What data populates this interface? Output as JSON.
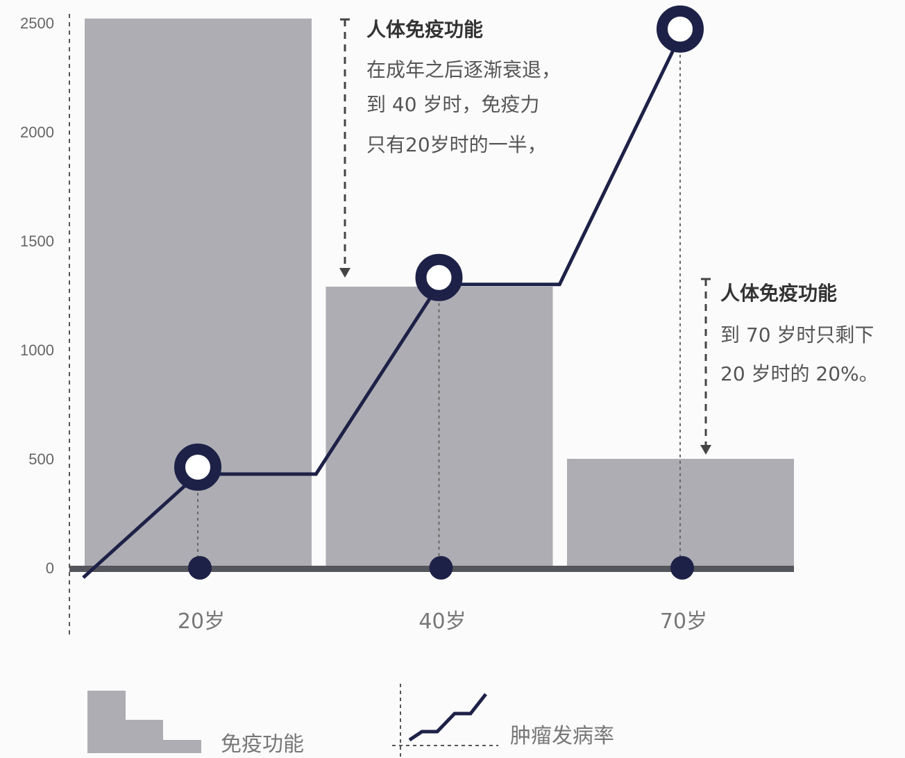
{
  "chart_data": {
    "type": "bar",
    "title": "",
    "xlabel": "",
    "ylabel": "",
    "ylim": [
      0,
      2500
    ],
    "yticks": [
      "0",
      "500",
      "1000",
      "1500",
      "2000",
      "2500"
    ],
    "categories": [
      "20岁",
      "40岁",
      "70岁"
    ],
    "grid": false,
    "bar_series": {
      "name": "免疫功能",
      "values": [
        2520,
        1290,
        500
      ],
      "color": "#adadb3"
    },
    "line_series": {
      "name": "肿瘤发病率",
      "color": "#1e2147",
      "points": [
        {
          "x": -0.475,
          "y": -45
        },
        {
          "x": 0,
          "y": 430
        },
        {
          "x": 0.49,
          "y": 430
        },
        {
          "x": 1,
          "y": 1300
        },
        {
          "x": 1.5,
          "y": 1300
        },
        {
          "x": 2,
          "y": 2440
        }
      ],
      "markers_at": [
        0,
        1,
        2
      ]
    },
    "annotations": [
      {
        "title": "人体免疫功能",
        "lines": [
          "在成年之后逐渐衰退，",
          "到 40 岁时，免疫力",
          "只有20岁时的一半，"
        ]
      },
      {
        "title": "人体免疫功能",
        "lines": [
          "到 70 岁时只剩下",
          "20 岁时的 20%。"
        ]
      }
    ],
    "legend": {
      "placement": "bottom-left",
      "bar_label": "免疫功能",
      "line_label": "肿瘤发病率"
    }
  }
}
